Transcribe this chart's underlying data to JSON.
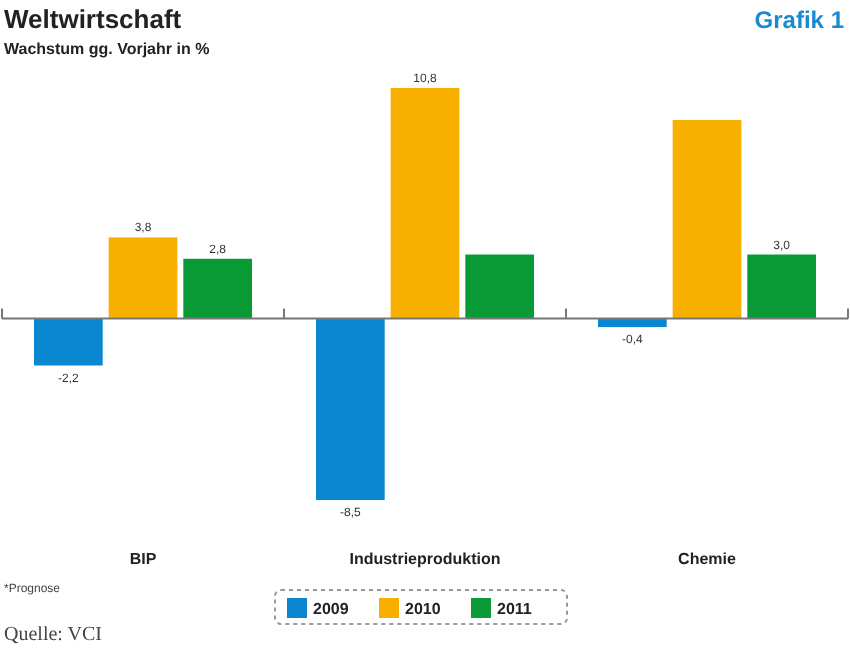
{
  "chart_data": {
    "type": "bar",
    "title": "Weltwirtschaft",
    "subtitle": "Wachstum gg. Vorjahr in %",
    "categories": [
      "BIP",
      "Industrieproduktion",
      "Chemie"
    ],
    "series": [
      {
        "name": "2009",
        "color": "#0a87d0",
        "values": [
          -2.2,
          -8.5,
          -0.4
        ],
        "value_labels": [
          "-2,2",
          "-8,5",
          "-0,4"
        ]
      },
      {
        "name": "2010",
        "color": "#f7b000",
        "values": [
          3.8,
          10.8,
          9.3
        ],
        "value_labels": [
          "3,8",
          "10,8",
          null
        ]
      },
      {
        "name": "2011",
        "color": "#0a9a35",
        "values": [
          2.8,
          3.0,
          3.0
        ],
        "value_labels": [
          "2,8",
          null,
          "3,0"
        ]
      }
    ],
    "legend": "bottom",
    "annotations": [
      "Grafik 1",
      "*Prognose",
      "Quelle: VCI"
    ]
  }
}
